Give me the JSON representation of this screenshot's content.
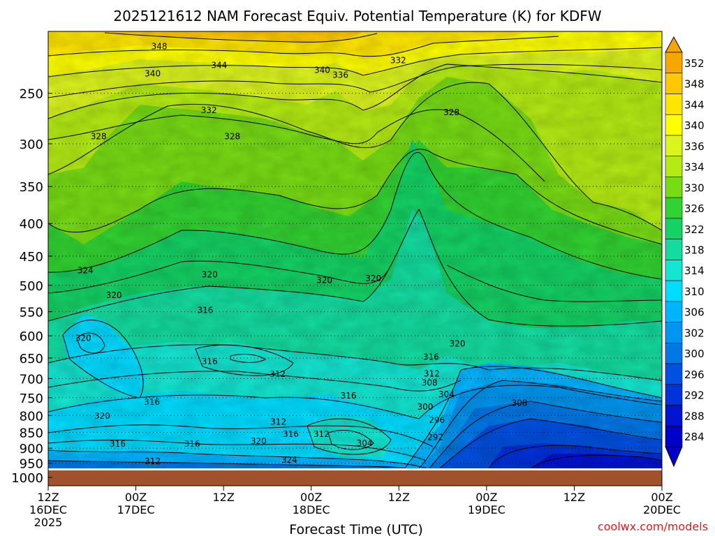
{
  "chart_data": {
    "type": "heatmap",
    "title": "2025121612 NAM Forecast Equiv. Potential Temperature (K) for KDFW",
    "xlabel": "Forecast Time (UTC)",
    "ylabel": "",
    "credit": "coolwx.com/models",
    "x_ticks": [
      {
        "hour": 0,
        "line1": "12Z",
        "line2": "16DEC",
        "line3": "2025"
      },
      {
        "hour": 12,
        "line1": "00Z",
        "line2": "17DEC",
        "line3": ""
      },
      {
        "hour": 24,
        "line1": "12Z",
        "line2": "",
        "line3": ""
      },
      {
        "hour": 36,
        "line1": "00Z",
        "line2": "18DEC",
        "line3": ""
      },
      {
        "hour": 48,
        "line1": "12Z",
        "line2": "",
        "line3": ""
      },
      {
        "hour": 60,
        "line1": "00Z",
        "line2": "19DEC",
        "line3": ""
      },
      {
        "hour": 72,
        "line1": "12Z",
        "line2": "",
        "line3": ""
      },
      {
        "hour": 84,
        "line1": "00Z",
        "line2": "20DEC",
        "line3": ""
      }
    ],
    "x_range": [
      0,
      84
    ],
    "y_ticks": [
      "250",
      "300",
      "350",
      "400",
      "450",
      "500",
      "550",
      "600",
      "650",
      "700",
      "750",
      "800",
      "850",
      "900",
      "950",
      "1000"
    ],
    "y_range": [
      200,
      1000
    ],
    "y_scale": "log",
    "grid": true,
    "colorbar": {
      "labels": [
        "352",
        "348",
        "344",
        "340",
        "336",
        "334",
        "330",
        "326",
        "322",
        "318",
        "314",
        "310",
        "306",
        "302",
        "300",
        "296",
        "292",
        "288",
        "284"
      ],
      "colors": [
        "#f7a600",
        "#ffc800",
        "#ffe600",
        "#ffff00",
        "#dcf51e",
        "#b4eb14",
        "#78dc14",
        "#32d232",
        "#14d264",
        "#14dca0",
        "#14e6d2",
        "#00dcff",
        "#00b4ff",
        "#0096f0",
        "#0078e6",
        "#0050e1",
        "#0032dc",
        "#0014d2",
        "#0000c8"
      ]
    },
    "contour_labels": [
      {
        "text": "348",
        "hour": 15.2,
        "p": 211
      },
      {
        "text": "344",
        "hour": 23.4,
        "p": 226
      },
      {
        "text": "340",
        "hour": 14.3,
        "p": 233
      },
      {
        "text": "340",
        "hour": 37.5,
        "p": 230
      },
      {
        "text": "336",
        "hour": 40.0,
        "p": 234
      },
      {
        "text": "332",
        "hour": 47.9,
        "p": 222
      },
      {
        "text": "332",
        "hour": 22.0,
        "p": 266
      },
      {
        "text": "328",
        "hour": 6.9,
        "p": 292
      },
      {
        "text": "328",
        "hour": 25.2,
        "p": 292
      },
      {
        "text": "328",
        "hour": 55.2,
        "p": 268
      },
      {
        "text": "324",
        "hour": 5.1,
        "p": 474
      },
      {
        "text": "320",
        "hour": 9.0,
        "p": 518
      },
      {
        "text": "320",
        "hour": 22.1,
        "p": 481
      },
      {
        "text": "320",
        "hour": 37.8,
        "p": 491
      },
      {
        "text": "320",
        "hour": 44.5,
        "p": 488
      },
      {
        "text": "320",
        "hour": 56.0,
        "p": 617
      },
      {
        "text": "320",
        "hour": 4.8,
        "p": 605
      },
      {
        "text": "320",
        "hour": 7.4,
        "p": 801
      },
      {
        "text": "316",
        "hour": 21.5,
        "p": 547
      },
      {
        "text": "316",
        "hour": 22.1,
        "p": 658
      },
      {
        "text": "316",
        "hour": 52.4,
        "p": 648
      },
      {
        "text": "316",
        "hour": 14.2,
        "p": 762
      },
      {
        "text": "316",
        "hour": 41.1,
        "p": 745
      },
      {
        "text": "316",
        "hour": 9.5,
        "p": 886
      },
      {
        "text": "316",
        "hour": 19.7,
        "p": 886
      },
      {
        "text": "316",
        "hour": 33.2,
        "p": 855
      },
      {
        "text": "312",
        "hour": 31.4,
        "p": 689
      },
      {
        "text": "312",
        "hour": 52.5,
        "p": 688
      },
      {
        "text": "312",
        "hour": 31.5,
        "p": 819
      },
      {
        "text": "312",
        "hour": 37.4,
        "p": 855
      },
      {
        "text": "312",
        "hour": 14.3,
        "p": 944
      },
      {
        "text": "320",
        "hour": 28.8,
        "p": 877
      },
      {
        "text": "324",
        "hour": 33.0,
        "p": 939
      },
      {
        "text": "308",
        "hour": 52.2,
        "p": 711
      },
      {
        "text": "308",
        "hour": 64.5,
        "p": 765
      },
      {
        "text": "304",
        "hour": 54.5,
        "p": 741
      },
      {
        "text": "304",
        "hour": 43.3,
        "p": 884
      },
      {
        "text": "300",
        "hour": 51.6,
        "p": 775
      },
      {
        "text": "296",
        "hour": 53.2,
        "p": 813
      },
      {
        "text": "292",
        "hour": 53.0,
        "p": 865
      }
    ]
  }
}
